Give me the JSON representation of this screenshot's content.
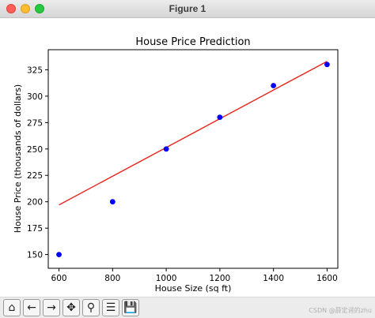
{
  "window": {
    "title": "Figure 1"
  },
  "chart_data": {
    "type": "scatter",
    "title": "House Price Prediction",
    "xlabel": "House Size (sq ft)",
    "ylabel": "House Price (thousands of dollars)",
    "xlim": [
      560,
      1640
    ],
    "ylim": [
      137,
      344
    ],
    "x_ticks": [
      "600",
      "800",
      "1000",
      "1200",
      "1400",
      "1600"
    ],
    "y_ticks": [
      "150",
      "175",
      "200",
      "225",
      "250",
      "275",
      "300",
      "325"
    ],
    "series": [
      {
        "kind": "points",
        "color": "#0000ff",
        "points": [
          [
            600,
            150
          ],
          [
            800,
            200
          ],
          [
            1000,
            250
          ],
          [
            1200,
            280
          ],
          [
            1400,
            310
          ],
          [
            1600,
            330
          ]
        ]
      },
      {
        "kind": "line",
        "color": "#e8261c",
        "points": [
          [
            600,
            197
          ],
          [
            1600,
            333
          ]
        ]
      }
    ],
    "grid": false,
    "legend": "none"
  },
  "toolbar": {
    "buttons": [
      {
        "name": "home-icon",
        "glyph": "⌂"
      },
      {
        "name": "back-arrow-icon",
        "glyph": "←"
      },
      {
        "name": "forward-arrow-icon",
        "glyph": "→"
      },
      {
        "name": "pan-icon",
        "glyph": "✥"
      },
      {
        "name": "zoom-icon",
        "glyph": "⚲"
      },
      {
        "name": "configure-subplots-icon",
        "glyph": "☰"
      },
      {
        "name": "save-icon",
        "glyph": "💾"
      }
    ]
  },
  "watermark": "CSDN @薛定谔的zhu"
}
